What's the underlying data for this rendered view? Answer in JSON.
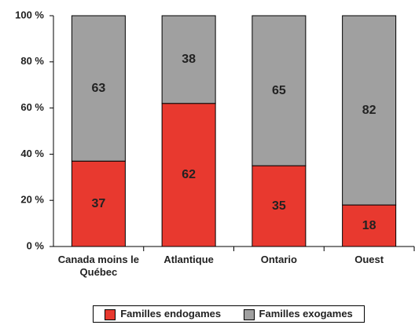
{
  "chart_data": {
    "type": "stacked_bar",
    "categories": [
      "Canada moins le Québec",
      "Atlantique",
      "Ontario",
      "Ouest"
    ],
    "series": [
      {
        "name": "Familles endogames",
        "color": "#e8392f",
        "label_color": "#ffffff",
        "values": [
          37,
          62,
          35,
          18
        ]
      },
      {
        "name": "Familles exogames",
        "color": "#a0a0a0",
        "label_color": "#222222",
        "values": [
          63,
          38,
          65,
          82
        ]
      }
    ],
    "ylim": [
      0,
      100
    ],
    "yticks": [
      {
        "value": 0,
        "label": "0 %"
      },
      {
        "value": 20,
        "label": "20 %"
      },
      {
        "value": 40,
        "label": "40 %"
      },
      {
        "value": 60,
        "label": "60 %"
      },
      {
        "value": 80,
        "label": "80 %"
      },
      {
        "value": 100,
        "label": "100 %"
      }
    ],
    "legend": "bottom"
  }
}
